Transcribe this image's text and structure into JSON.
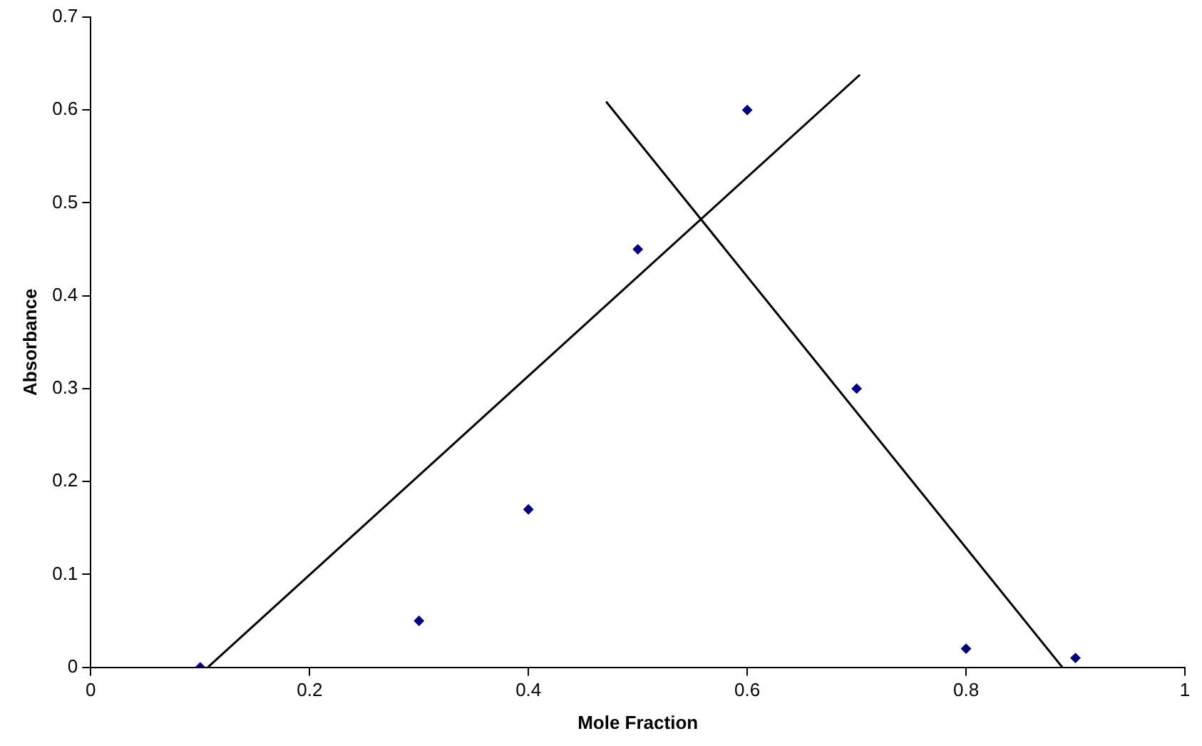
{
  "chart_data": {
    "type": "scatter",
    "xlabel": "Mole Fraction",
    "ylabel": "Absorbance",
    "xlim": [
      0,
      1
    ],
    "xticks": [
      0,
      0.2,
      0.4,
      0.6,
      0.8,
      1
    ],
    "ylim": [
      0,
      0.7
    ],
    "yticks": [
      0,
      0.1,
      0.2,
      0.3,
      0.4,
      0.5,
      0.6,
      0.7
    ],
    "grid": false,
    "legend": false,
    "series": [
      {
        "type": "scatter",
        "marker": "diamond",
        "color": "#000080",
        "x": [
          0.1,
          0.3,
          0.4,
          0.5,
          0.6,
          0.7,
          0.8,
          0.9
        ],
        "values": [
          0,
          0.05,
          0.17,
          0.45,
          0.6,
          0.3,
          0.02,
          0.01
        ]
      },
      {
        "type": "line",
        "marker": "none",
        "color": "#000000",
        "x": [
          0.107,
          0.703
        ],
        "values": [
          0,
          0.638
        ]
      },
      {
        "type": "line",
        "marker": "none",
        "color": "#000000",
        "x": [
          0.471,
          0.888
        ],
        "values": [
          0.609,
          0
        ]
      }
    ]
  }
}
